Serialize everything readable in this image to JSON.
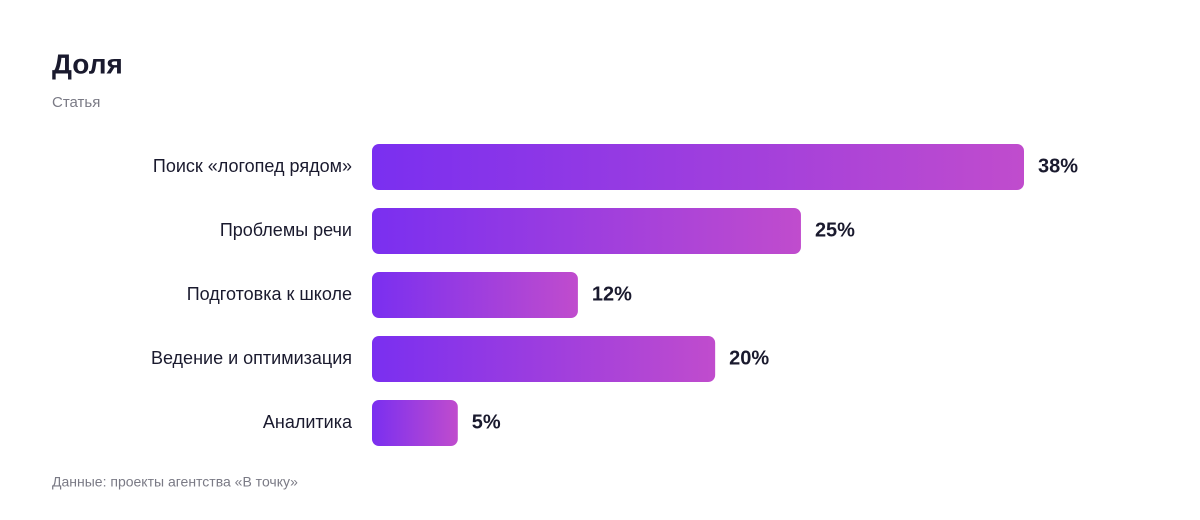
{
  "chart_data": {
    "type": "bar",
    "orientation": "horizontal",
    "title": "Доля",
    "subtitle": "Статья",
    "categories": [
      "Поиск «логопед рядом»",
      "Проблемы речи",
      "Подготовка к школе",
      "Ведение и оптимизация",
      "Аналитика"
    ],
    "values": [
      38,
      25,
      12,
      20,
      5
    ],
    "value_labels": [
      "38%",
      "25%",
      "12%",
      "20%",
      "5%"
    ],
    "gradient": [
      "#7a2ff0",
      "#c04ccd"
    ],
    "source": "Данные: проекты агентства «В точку»"
  }
}
